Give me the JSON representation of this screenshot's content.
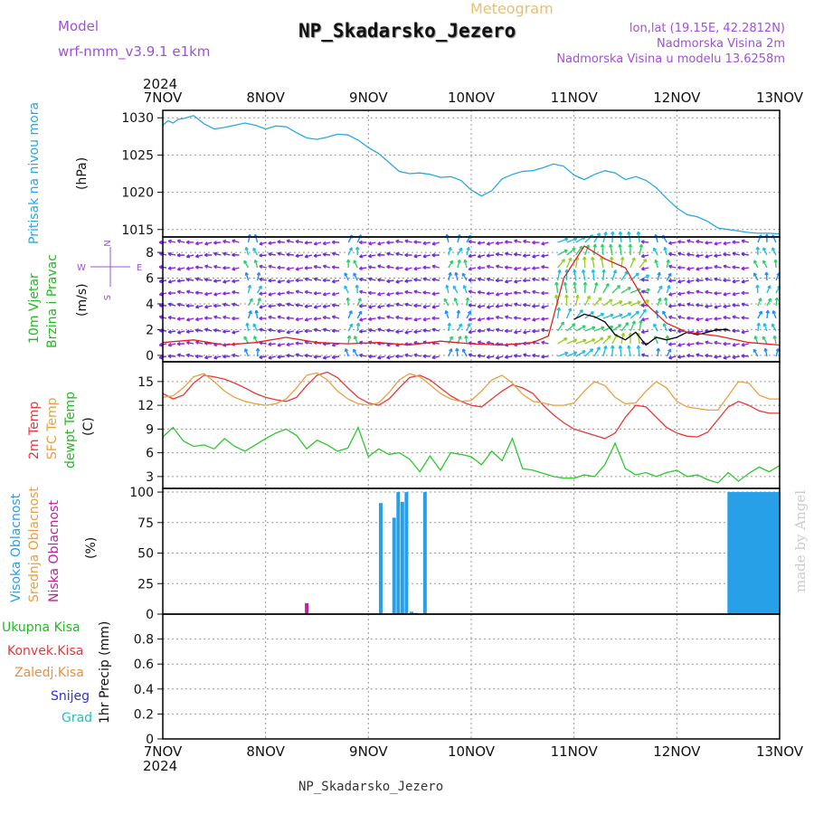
{
  "header": {
    "model_label": "Model",
    "model_name": "wrf-nmm_v3.9.1  e1km",
    "app_title": "Meteogram",
    "station_title": "NP_Skadarsko_Jezero",
    "lonlat": "lon,lat (19.15E, 42.2812N)",
    "elevation": "Nadmorska Visina 2m",
    "model_elevation": "Nadmorska Visina u modelu 13.6258m",
    "footer_station": "NP_Skadarsko_Jezero",
    "watermark": "made by Angel",
    "year": "2024"
  },
  "chart_data": [
    {
      "type": "line",
      "panel": "pressure",
      "ylabels": [
        "Pritisak na nivou mora",
        "(hPa)"
      ],
      "ylim": [
        1014,
        1031
      ],
      "ticks": [
        1015,
        1020,
        1025,
        1030
      ],
      "x_categories": [
        "7NOV",
        "8NOV",
        "9NOV",
        "10NOV",
        "11NOV",
        "12NOV",
        "13NOV"
      ],
      "grid": true,
      "series": [
        {
          "color": "#2aa8e0",
          "x": [
            0,
            0.05,
            0.1,
            0.15,
            0.2,
            0.3,
            0.4,
            0.5,
            0.6,
            0.7,
            0.8,
            0.9,
            1.0,
            1.1,
            1.2,
            1.3,
            1.4,
            1.5,
            1.6,
            1.7,
            1.8,
            1.9,
            2.0,
            2.1,
            2.2,
            2.3,
            2.4,
            2.5,
            2.6,
            2.7,
            2.8,
            2.9,
            3.0,
            3.1,
            3.2,
            3.3,
            3.4,
            3.5,
            3.6,
            3.7,
            3.8,
            3.9,
            4.0,
            4.1,
            4.2,
            4.3,
            4.4,
            4.5,
            4.6,
            4.7,
            4.8,
            4.9,
            5.0,
            5.1,
            5.2,
            5.3,
            5.4,
            5.5,
            5.6,
            5.7,
            5.8,
            5.9,
            6.0
          ],
          "y": [
            1029.0,
            1029.6,
            1029.3,
            1029.8,
            1029.9,
            1030.3,
            1029.2,
            1028.5,
            1028.7,
            1029.0,
            1029.3,
            1029.0,
            1028.5,
            1028.9,
            1028.8,
            1028.0,
            1027.3,
            1027.1,
            1027.4,
            1027.8,
            1027.7,
            1027.0,
            1026.0,
            1025.2,
            1024.0,
            1022.8,
            1022.5,
            1022.6,
            1022.4,
            1022.0,
            1022.1,
            1021.6,
            1020.3,
            1019.5,
            1020.2,
            1021.8,
            1022.4,
            1022.8,
            1022.9,
            1023.3,
            1023.8,
            1023.5,
            1022.3,
            1021.7,
            1022.4,
            1022.9,
            1022.6,
            1021.7,
            1022.1,
            1021.6,
            1020.6,
            1019.2,
            1017.9,
            1017.0,
            1016.7,
            1016.1,
            1015.2,
            1015.0,
            1014.8,
            1014.6,
            1014.5,
            1014.5,
            1014.4
          ]
        }
      ]
    },
    {
      "type": "line",
      "panel": "wind",
      "ylabels": [
        "10m Vjetar",
        "Brzina i Pravac",
        "(m/s)"
      ],
      "compass": "N S W E",
      "ylim": [
        -0.5,
        9.2
      ],
      "ticks": [
        0,
        2,
        4,
        6,
        8
      ],
      "grid": true,
      "series": [
        {
          "color": "#000000",
          "x": [
            4.0,
            4.1,
            4.2,
            4.3,
            4.4,
            4.5,
            4.6,
            4.7,
            4.8,
            4.9,
            5.0,
            5.1,
            5.2,
            5.3,
            5.4,
            5.5
          ],
          "y": [
            2.8,
            3.2,
            3.0,
            2.6,
            1.6,
            1.2,
            1.8,
            0.8,
            1.4,
            1.2,
            1.4,
            1.8,
            1.6,
            1.8,
            2.0,
            2.0
          ]
        },
        {
          "color": "#e02020",
          "x": [
            0,
            0.3,
            0.6,
            0.9,
            1.2,
            1.5,
            1.8,
            2.1,
            2.4,
            2.7,
            3.0,
            3.3,
            3.6,
            3.75,
            3.9,
            4.1,
            4.3,
            4.5,
            4.7,
            4.9,
            5.1,
            5.4,
            5.7,
            6.0
          ],
          "y": [
            1.0,
            1.2,
            0.8,
            1.0,
            1.4,
            1.0,
            0.9,
            1.0,
            0.8,
            1.1,
            0.9,
            0.8,
            1.0,
            1.5,
            6.0,
            8.5,
            7.5,
            6.8,
            4.0,
            2.5,
            1.8,
            1.5,
            1.0,
            0.8
          ]
        }
      ]
    },
    {
      "type": "line",
      "panel": "temperature",
      "ylabels": [
        "2m Temp",
        "SFC Temp",
        "dewpt Temp",
        "(C)"
      ],
      "ylim": [
        1.5,
        17.5
      ],
      "ticks": [
        3,
        6,
        9,
        12,
        15
      ],
      "grid": true,
      "series": [
        {
          "name": "2m Temp",
          "color": "#e83838",
          "x": [
            0,
            0.1,
            0.2,
            0.3,
            0.4,
            0.5,
            0.6,
            0.7,
            0.8,
            0.9,
            1.0,
            1.1,
            1.2,
            1.3,
            1.4,
            1.5,
            1.6,
            1.7,
            1.8,
            1.9,
            2.0,
            2.1,
            2.2,
            2.3,
            2.4,
            2.5,
            2.6,
            2.7,
            2.8,
            2.9,
            3.0,
            3.1,
            3.2,
            3.3,
            3.4,
            3.5,
            3.6,
            3.7,
            3.8,
            3.9,
            4.0,
            4.1,
            4.2,
            4.3,
            4.4,
            4.5,
            4.6,
            4.7,
            4.8,
            4.9,
            5.0,
            5.1,
            5.2,
            5.3,
            5.4,
            5.5,
            5.6,
            5.7,
            5.8,
            5.9,
            6.0
          ],
          "y": [
            13.5,
            12.8,
            13.3,
            14.8,
            15.8,
            15.6,
            15.3,
            14.8,
            14.2,
            13.5,
            13.0,
            12.7,
            12.5,
            13.0,
            14.5,
            15.8,
            16.2,
            15.5,
            14.2,
            13.0,
            12.3,
            12.0,
            12.8,
            14.2,
            15.5,
            15.8,
            15.2,
            14.2,
            13.2,
            12.5,
            12.0,
            11.8,
            12.8,
            13.8,
            14.6,
            14.2,
            13.5,
            12.0,
            10.8,
            9.8,
            9.0,
            8.6,
            8.2,
            7.8,
            8.5,
            10.5,
            12.0,
            11.8,
            10.5,
            9.2,
            8.5,
            8.1,
            8.0,
            8.6,
            10.2,
            11.8,
            12.5,
            12.0,
            11.3,
            11.0,
            11.0
          ]
        },
        {
          "name": "SFC Temp",
          "color": "#e8a040",
          "x": [
            0,
            0.1,
            0.2,
            0.3,
            0.4,
            0.5,
            0.6,
            0.7,
            0.8,
            0.9,
            1.0,
            1.1,
            1.2,
            1.3,
            1.4,
            1.5,
            1.6,
            1.7,
            1.8,
            1.9,
            2.0,
            2.1,
            2.2,
            2.3,
            2.4,
            2.5,
            2.6,
            2.7,
            2.8,
            2.9,
            3.0,
            3.1,
            3.2,
            3.3,
            3.4,
            3.5,
            3.6,
            3.7,
            3.8,
            3.9,
            4.0,
            4.1,
            4.2,
            4.3,
            4.4,
            4.5,
            4.6,
            4.7,
            4.8,
            4.9,
            5.0,
            5.1,
            5.2,
            5.3,
            5.4,
            5.5,
            5.6,
            5.7,
            5.8,
            5.9,
            6.0
          ],
          "y": [
            13.0,
            13.2,
            14.2,
            15.6,
            16.0,
            15.0,
            13.8,
            13.0,
            12.5,
            12.2,
            12.0,
            12.2,
            12.8,
            14.2,
            15.8,
            16.1,
            15.2,
            13.8,
            12.8,
            12.2,
            12.0,
            12.3,
            13.6,
            15.2,
            16.0,
            15.6,
            14.6,
            13.5,
            12.8,
            12.5,
            12.6,
            13.8,
            15.2,
            15.8,
            14.8,
            13.4,
            12.5,
            12.3,
            12.0,
            12.0,
            12.3,
            13.8,
            15.0,
            14.5,
            13.0,
            12.2,
            12.3,
            13.8,
            15.0,
            14.2,
            12.5,
            11.8,
            11.6,
            11.4,
            11.4,
            13.2,
            15.0,
            14.8,
            13.3,
            12.8,
            12.8
          ]
        },
        {
          "name": "dewpt Temp",
          "color": "#2ec82e",
          "x": [
            0,
            0.1,
            0.2,
            0.3,
            0.4,
            0.5,
            0.6,
            0.7,
            0.8,
            0.9,
            1.0,
            1.1,
            1.2,
            1.3,
            1.4,
            1.5,
            1.6,
            1.7,
            1.8,
            1.9,
            2.0,
            2.1,
            2.2,
            2.3,
            2.4,
            2.5,
            2.6,
            2.7,
            2.8,
            2.9,
            3.0,
            3.1,
            3.2,
            3.3,
            3.4,
            3.5,
            3.6,
            3.7,
            3.8,
            3.9,
            4.0,
            4.1,
            4.2,
            4.3,
            4.4,
            4.5,
            4.6,
            4.7,
            4.8,
            4.9,
            5.0,
            5.1,
            5.2,
            5.3,
            5.4,
            5.5,
            5.6,
            5.7,
            5.8,
            5.9,
            6.0
          ],
          "y": [
            8.0,
            9.2,
            7.5,
            6.8,
            7.0,
            6.5,
            7.8,
            6.8,
            6.2,
            7.0,
            7.8,
            8.5,
            9.0,
            8.2,
            6.5,
            7.6,
            7.0,
            6.2,
            6.6,
            9.2,
            5.5,
            6.5,
            5.8,
            6.0,
            5.2,
            3.6,
            5.6,
            3.8,
            6.0,
            5.8,
            5.5,
            4.5,
            6.2,
            5.0,
            7.8,
            4.0,
            3.8,
            3.4,
            3.0,
            2.8,
            2.8,
            3.2,
            3.0,
            4.5,
            7.2,
            4.0,
            3.2,
            3.5,
            3.0,
            3.5,
            3.8,
            3.0,
            3.2,
            2.6,
            2.2,
            3.5,
            2.4,
            3.4,
            4.2,
            3.6,
            4.4
          ]
        }
      ]
    },
    {
      "type": "bar",
      "panel": "cloud_cover",
      "ylabels": [
        "Visoka Oblacnost",
        "Srednja Oblacnost",
        "Niska Oblacnost",
        "(%)"
      ],
      "ylim": [
        0,
        103
      ],
      "ticks": [
        0,
        25,
        50,
        75,
        100
      ],
      "grid": true,
      "series": [
        {
          "name": "Visoka Oblacnost",
          "color": "#28a0e8",
          "x": [
            2.12,
            2.25,
            2.29,
            2.33,
            2.37,
            2.42,
            2.46,
            2.55,
            5.51,
            5.54,
            5.57,
            5.6,
            5.63,
            5.66,
            5.69,
            5.72,
            5.75,
            5.78,
            5.81,
            5.84,
            5.87,
            5.9,
            5.93,
            5.96,
            5.99
          ],
          "y": [
            91,
            79,
            100,
            92,
            100,
            2,
            1,
            100,
            100,
            100,
            100,
            100,
            100,
            100,
            100,
            100,
            100,
            100,
            100,
            100,
            100,
            100,
            100,
            100,
            100
          ]
        },
        {
          "name": "Niska Oblacnost",
          "color": "#c020a0",
          "x": [
            1.4
          ],
          "y": [
            9
          ]
        }
      ]
    },
    {
      "type": "line",
      "panel": "precipitation",
      "ylabels": [
        "Ukupna Kisa",
        "Konvek.Kisa",
        "Zaledj.Kisa",
        "Snijeg",
        "Grad",
        "1hr Precip (mm)"
      ],
      "ylim": [
        0,
        1.0
      ],
      "ticks": [
        "0",
        "0.2",
        "0.4",
        "0.6",
        "0.8"
      ],
      "grid": true,
      "series": []
    }
  ],
  "colors": {
    "grid": "#999999",
    "pressure": "#2aa8e0",
    "label_green": "#22bb22",
    "label_red": "#e83838",
    "label_orange": "#e89040",
    "label_blue": "#3030e0",
    "label_cyan": "#20c0c0",
    "label_magenta": "#c020a0",
    "label_violet": "#a050d8"
  }
}
